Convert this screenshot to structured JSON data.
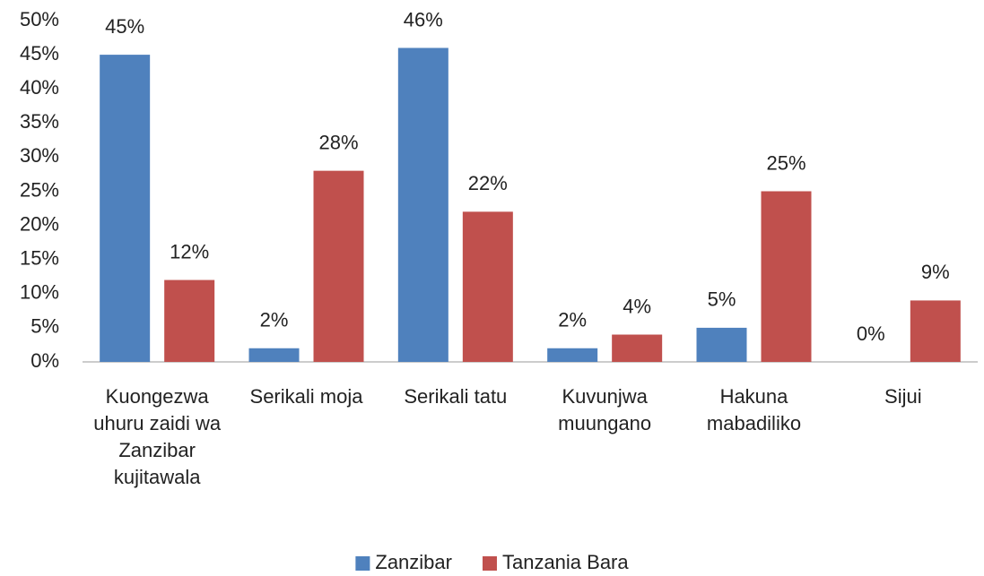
{
  "chart_data": {
    "type": "bar",
    "categories": [
      "Kuongezwa uhuru zaidi wa Zanzibar kujitawala",
      "Serikali moja",
      "Serikali tatu",
      "Kuvunjwa muungano",
      "Hakuna mabadiliko",
      "Sijui"
    ],
    "series": [
      {
        "name": "Zanzibar",
        "color": "#4f81bd",
        "values": [
          45,
          2,
          46,
          2,
          5,
          0
        ],
        "value_labels": [
          "45%",
          "2%",
          "46%",
          "2%",
          "5%",
          "0%"
        ]
      },
      {
        "name": "Tanzania Bara",
        "color": "#c0504d",
        "values": [
          12,
          28,
          22,
          4,
          25,
          9
        ],
        "value_labels": [
          "12%",
          "28%",
          "22%",
          "4%",
          "25%",
          "9%"
        ]
      }
    ],
    "ylim": [
      0,
      50
    ],
    "yticks": [
      {
        "value": 0,
        "label": "0%"
      },
      {
        "value": 5,
        "label": "5%"
      },
      {
        "value": 10,
        "label": "10%"
      },
      {
        "value": 15,
        "label": "15%"
      },
      {
        "value": 20,
        "label": "20%"
      },
      {
        "value": 25,
        "label": "25%"
      },
      {
        "value": 30,
        "label": "30%"
      },
      {
        "value": 35,
        "label": "35%"
      },
      {
        "value": 40,
        "label": "40%"
      },
      {
        "value": 45,
        "label": "45%"
      },
      {
        "value": 50,
        "label": "50%"
      }
    ],
    "grid": false,
    "legend": "bottom"
  }
}
